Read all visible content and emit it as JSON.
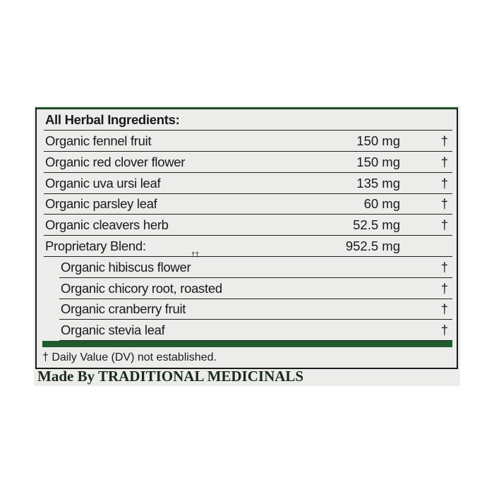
{
  "header": "All Herbal Ingredients:",
  "rows": [
    {
      "name": "Organic fennel fruit",
      "amount": "150 mg",
      "mark": "†",
      "indent": false
    },
    {
      "name": "Organic red clover flower",
      "amount": "150 mg",
      "mark": "†",
      "indent": false
    },
    {
      "name": "Organic uva ursi leaf",
      "amount": "135 mg",
      "mark": "†",
      "indent": false
    },
    {
      "name": "Organic parsley leaf",
      "amount": "60 mg",
      "mark": "†",
      "indent": false
    },
    {
      "name": "Organic cleavers herb",
      "amount": "52.5 mg",
      "mark": "†",
      "indent": false
    },
    {
      "name": "Proprietary Blend:",
      "amount": "952.5 mg",
      "mark": "",
      "indent": false
    },
    {
      "name": "Organic hibiscus flower",
      "sup": "††",
      "amount": "",
      "mark": "†",
      "indent": true
    },
    {
      "name": "Organic chicory root, roasted",
      "amount": "",
      "mark": "†",
      "indent": true
    },
    {
      "name": "Organic cranberry fruit",
      "amount": "",
      "mark": "†",
      "indent": true
    },
    {
      "name": "Organic stevia leaf",
      "amount": "",
      "mark": "†",
      "indent": true
    }
  ],
  "footnote": "† Daily Value (DV) not established.",
  "maker": "Made By TRADITIONAL MEDICINALS",
  "colors": {
    "accent_green": "#1f5b2c",
    "background": "#ececea"
  }
}
